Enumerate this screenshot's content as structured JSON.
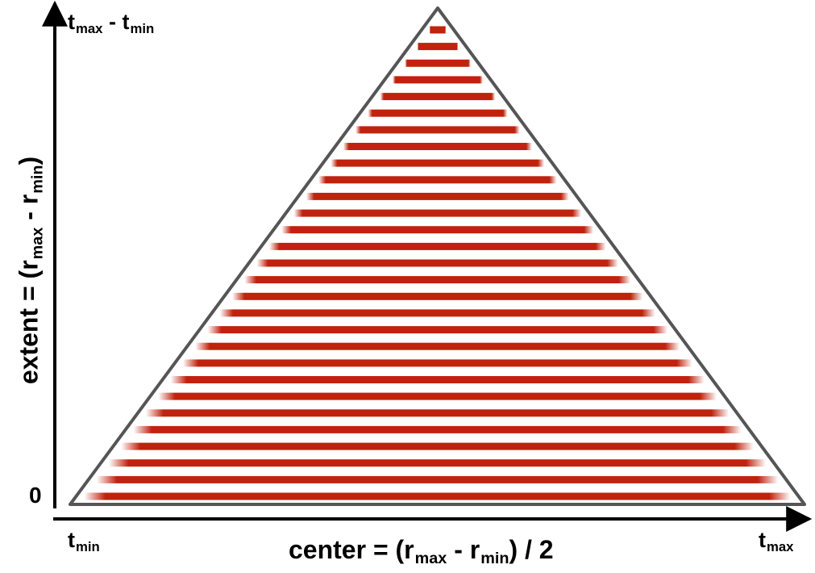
{
  "diagram": {
    "y_axis": {
      "label_prefix": "extent = (r",
      "label_sub1": "max",
      "label_mid": " - r",
      "label_sub2": "min",
      "label_suffix": ")",
      "top_label_a": "t",
      "top_label_a_sub": "max",
      "top_label_b": " - t",
      "top_label_b_sub": "min",
      "origin_label": "0"
    },
    "x_axis": {
      "label_prefix": "center = (r",
      "label_sub1": "max",
      "label_mid": " - r",
      "label_sub2": "min",
      "label_suffix": ") / 2",
      "left_label": "t",
      "left_label_sub": "min",
      "right_label": "t",
      "right_label_sub": "max"
    },
    "colors": {
      "stripe": "#c0220d",
      "triangle_outline": "#555555",
      "axis": "#000000"
    },
    "stripe_count": 29
  }
}
